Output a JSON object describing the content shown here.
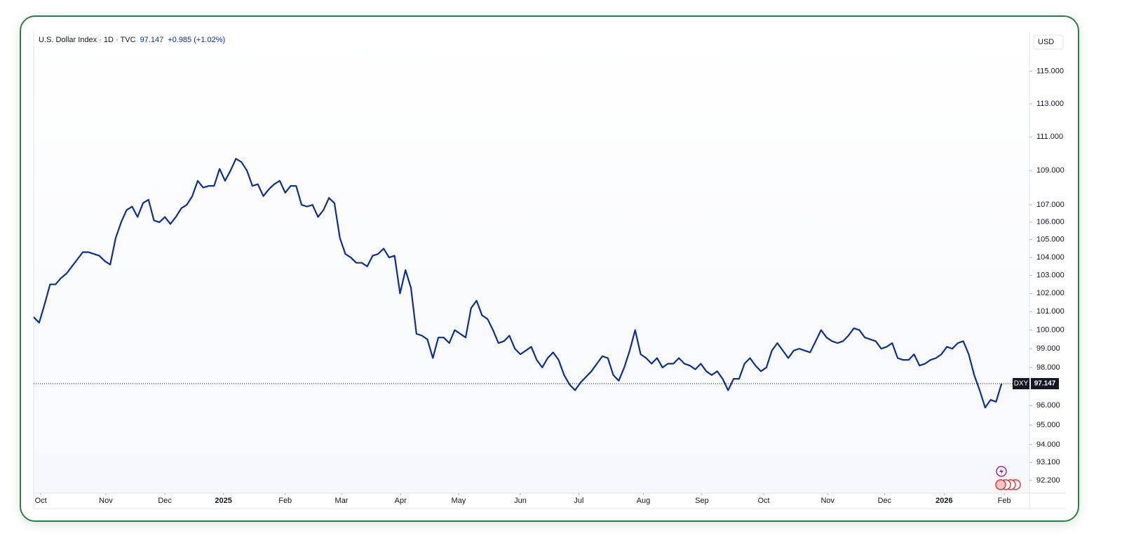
{
  "chart_data": {
    "type": "line",
    "title": "U.S. Dollar Index · 1D · TVC",
    "change": "+0.985 (+1.02%)",
    "currency": "USD",
    "symbol": "DXY",
    "color": "#0c2f96",
    "log_scale": true,
    "values": [
      100.7,
      100.4,
      101.4,
      102.5,
      102.5,
      102.85,
      103.1,
      103.5,
      103.9,
      104.3,
      104.3,
      104.2,
      104.1,
      103.8,
      103.6,
      105.1,
      106,
      106.7,
      106.9,
      106.3,
      107.1,
      107.3,
      106.1,
      106,
      106.3,
      105.9,
      106.3,
      106.8,
      107,
      107.5,
      108.4,
      108,
      108.1,
      108.1,
      109.1,
      108.4,
      109,
      109.7,
      109.5,
      109,
      108.1,
      108.2,
      107.5,
      107.9,
      108.2,
      108.4,
      107.7,
      108.1,
      108.1,
      107,
      106.9,
      107,
      106.3,
      106.7,
      107.4,
      107.1,
      105.1,
      104.2,
      104,
      103.7,
      103.7,
      103.5,
      104.1,
      104.2,
      104.5,
      104,
      104.1,
      102,
      103.3,
      102.3,
      99.8,
      99.7,
      99.5,
      98.5,
      99.6,
      99.6,
      99.3,
      100,
      99.8,
      99.6,
      101.2,
      101.6,
      100.8,
      100.6,
      100,
      99.3,
      99.4,
      99.7,
      99,
      98.7,
      98.9,
      99.1,
      98.4,
      98,
      98.5,
      98.8,
      98.4,
      97.6,
      97.1,
      96.8,
      97.2,
      97.5,
      97.8,
      98.2,
      98.6,
      98.5,
      97.6,
      97.3,
      98,
      98.9,
      100,
      98.7,
      98.5,
      98.2,
      98.5,
      98,
      98.2,
      98.2,
      98.5,
      98.2,
      98.1,
      97.9,
      98.2,
      97.8,
      97.6,
      97.8,
      97.4,
      96.8,
      97.4,
      97.4,
      98.2,
      98.5,
      98.1,
      97.8,
      98,
      98.9,
      99.3,
      98.9,
      98.5,
      98.9,
      99,
      98.9,
      98.8,
      99.4,
      100,
      99.6,
      99.4,
      99.3,
      99.4,
      99.7,
      100.1,
      100,
      99.6,
      99.5,
      99.4,
      99,
      99.1,
      99.3,
      98.5,
      98.4,
      98.4,
      98.7,
      98.1,
      98.2,
      98.4,
      98.5,
      98.7,
      99.1,
      99,
      99.3,
      99.4,
      98.7,
      97.6,
      96.8,
      95.9,
      96.3,
      96.2,
      97.147
    ],
    "xlim": [
      0,
      182.1
    ],
    "xticks": [
      {
        "value": 1.3,
        "label": "Oct"
      },
      {
        "value": 13.2,
        "label": "Nov"
      },
      {
        "value": 24,
        "label": "Dec"
      },
      {
        "value": 34.7,
        "label": "2025"
      },
      {
        "value": 46,
        "label": "Feb"
      },
      {
        "value": 56.3,
        "label": "Mar"
      },
      {
        "value": 67.1,
        "label": "Apr"
      },
      {
        "value": 77.7,
        "label": "May"
      },
      {
        "value": 89,
        "label": "Jun"
      },
      {
        "value": 99.7,
        "label": "Jul"
      },
      {
        "value": 111.5,
        "label": "Aug"
      },
      {
        "value": 122.2,
        "label": "Sep"
      },
      {
        "value": 133.5,
        "label": "Oct"
      },
      {
        "value": 145.2,
        "label": "Nov"
      },
      {
        "value": 155.6,
        "label": "Dec"
      },
      {
        "value": 166.5,
        "label": "2026"
      },
      {
        "value": 177.5,
        "label": "Feb"
      }
    ],
    "ylim": [
      91.57,
      117.5
    ],
    "yticks": [
      {
        "value": 115,
        "label": "115.000"
      },
      {
        "value": 113,
        "label": "113.000"
      },
      {
        "value": 111,
        "label": "111.000"
      },
      {
        "value": 109,
        "label": "109.000"
      },
      {
        "value": 107,
        "label": "107.000"
      },
      {
        "value": 106,
        "label": "106.000"
      },
      {
        "value": 105,
        "label": "105.000"
      },
      {
        "value": 104,
        "label": "104.000"
      },
      {
        "value": 103,
        "label": "103.000"
      },
      {
        "value": 102,
        "label": "102.000"
      },
      {
        "value": 101,
        "label": "101.000"
      },
      {
        "value": 100,
        "label": "100.000"
      },
      {
        "value": 99,
        "label": "99.000"
      },
      {
        "value": 98,
        "label": "98.000"
      },
      {
        "value": 96,
        "label": "96.000"
      },
      {
        "value": 95,
        "label": "95.000"
      },
      {
        "value": 94,
        "label": "94.000"
      },
      {
        "value": 93.1,
        "label": "93.100"
      },
      {
        "value": 92.2,
        "label": "92.200"
      }
    ]
  }
}
